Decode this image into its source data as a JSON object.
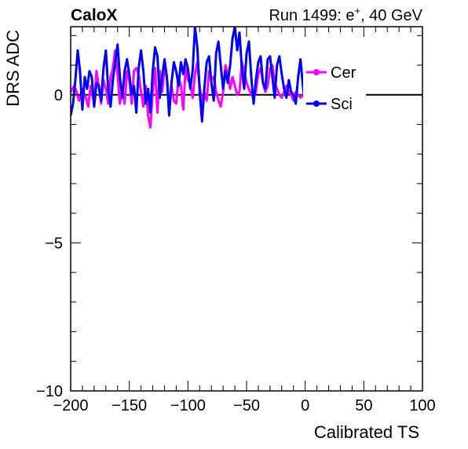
{
  "header": {
    "left_text": "CaloX",
    "right_text": "Run 1499: e",
    "right_sup": "+",
    "right_tail": ", 40 GeV"
  },
  "chart_data": {
    "type": "line",
    "xlabel": "Calibrated TS",
    "ylabel": "DRS ADC",
    "xlim": [
      -200,
      100
    ],
    "ylim": [
      -10,
      2.3
    ],
    "x_ticks": [
      -200,
      -150,
      -100,
      -50,
      0,
      50,
      100
    ],
    "x_tick_labels": [
      "−200",
      "−150",
      "−100",
      "−50",
      "0",
      "50",
      "100"
    ],
    "y_ticks": [
      -10,
      -5,
      0
    ],
    "y_tick_labels": [
      "−10",
      "−5",
      "0"
    ],
    "zero_line": true,
    "legend": {
      "placement": "top-right",
      "entries": [
        {
          "name": "Cer",
          "color": "#ff00ff"
        },
        {
          "name": "Sci",
          "color": "#0000ff"
        }
      ]
    },
    "series": [
      {
        "name": "Cer",
        "color": "#ff00ff",
        "x": [
          -200,
          -197,
          -195,
          -193,
          -190,
          -187,
          -185,
          -183,
          -180,
          -178,
          -176,
          -174,
          -172,
          -170,
          -168,
          -166,
          -164,
          -162,
          -160,
          -158,
          -156,
          -154,
          -152,
          -150,
          -148,
          -146,
          -144,
          -142,
          -140,
          -138,
          -136,
          -134,
          -132,
          -130,
          -128,
          -126,
          -124,
          -122,
          -120,
          -118,
          -116,
          -114,
          -112,
          -110,
          -108,
          -106,
          -104,
          -102,
          -100,
          -98,
          -96,
          -94,
          -92,
          -90,
          -88,
          -86,
          -84,
          -82,
          -80,
          -78,
          -76,
          -74,
          -72,
          -70,
          -68,
          -66,
          -64,
          -62,
          -60,
          -58,
          -56,
          -54,
          -52,
          -50,
          -48,
          -46,
          -44,
          -42,
          -40,
          -38,
          -36,
          -34,
          -32,
          -30,
          -28,
          -26,
          -24,
          -22,
          -20,
          -18,
          -16,
          -14,
          -12,
          -10,
          -8,
          -6,
          -4,
          -2,
          0
        ],
        "y": [
          0.1,
          0.3,
          0.1,
          -0.2,
          0.2,
          -0.1,
          -0.4,
          0.3,
          -0.3,
          0.8,
          0.3,
          -0.3,
          0.5,
          0.2,
          -0.3,
          0.6,
          0.9,
          1.5,
          0.7,
          -0.3,
          0.2,
          -0.3,
          0.8,
          0.5,
          -0.3,
          0.8,
          0.9,
          0.7,
          0.1,
          -0.4,
          0.3,
          -0.7,
          -1.1,
          0.1,
          0.9,
          -0.6,
          0.8,
          0.1,
          0.9,
          0.6,
          -0.3,
          0.3,
          -0.2,
          -0.3,
          0.6,
          0.3,
          -0.5,
          0.9,
          0.5,
          0.4,
          -0.1,
          0.7,
          1.1,
          0.3,
          -0.3,
          0.1,
          -0.2,
          0.8,
          0.5,
          0.6,
          0.1,
          -0.2,
          -0.4,
          0.1,
          1.0,
          0.7,
          0.2,
          0.6,
          0.3,
          0.0,
          0.1,
          1.1,
          0.8,
          0.4,
          0.2,
          0.0,
          -0.1,
          0.1,
          0.7,
          0.9,
          0.4,
          0.1,
          0.3,
          0.9,
          1.0,
          0.4,
          0.2,
          0.0,
          -0.1,
          0.1,
          0.3,
          0.1,
          0.0,
          -0.2,
          0.1,
          0.0,
          -0.1,
          0.0,
          0.0
        ]
      },
      {
        "name": "Sci",
        "color": "#0000ff",
        "x": [
          -200,
          -198,
          -196,
          -194,
          -192,
          -190,
          -188,
          -186,
          -184,
          -182,
          -180,
          -178,
          -176,
          -174,
          -172,
          -170,
          -168,
          -166,
          -164,
          -162,
          -160,
          -158,
          -156,
          -154,
          -152,
          -150,
          -148,
          -146,
          -144,
          -142,
          -140,
          -138,
          -136,
          -134,
          -132,
          -130,
          -128,
          -126,
          -124,
          -122,
          -120,
          -118,
          -116,
          -114,
          -112,
          -110,
          -108,
          -106,
          -104,
          -102,
          -100,
          -98,
          -96,
          -94,
          -92,
          -90,
          -88,
          -86,
          -84,
          -82,
          -80,
          -78,
          -76,
          -74,
          -72,
          -70,
          -68,
          -66,
          -64,
          -62,
          -60,
          -58,
          -56,
          -54,
          -52,
          -50,
          -48,
          -46,
          -44,
          -42,
          -40,
          -38,
          -36,
          -34,
          -32,
          -30,
          -28,
          -26,
          -24,
          -22,
          -20,
          -18,
          -16,
          -14,
          -12,
          -10,
          -8,
          -6,
          -4,
          -2,
          0
        ],
        "y": [
          -0.7,
          -0.3,
          0.5,
          1.5,
          0.8,
          -0.5,
          0.6,
          0.2,
          0.8,
          0.6,
          -0.4,
          0.4,
          0.3,
          -0.2,
          0.9,
          1.5,
          0.2,
          -0.4,
          0.5,
          1.1,
          1.7,
          0.6,
          -0.1,
          0.8,
          1.2,
          0.7,
          0.0,
          0.3,
          -0.6,
          0.9,
          1.5,
          0.8,
          -0.3,
          0.2,
          -0.6,
          0.8,
          1.6,
          1.3,
          -0.1,
          0.6,
          1.2,
          0.6,
          -0.7,
          0.4,
          1.1,
          0.8,
          0.3,
          1.1,
          0.7,
          1.2,
          0.9,
          0.2,
          0.8,
          2.3,
          1.6,
          0.1,
          -0.9,
          0.2,
          1.1,
          1.3,
          0.4,
          -0.2,
          1.4,
          1.8,
          1.0,
          0.2,
          0.8,
          0.4,
          1.0,
          1.9,
          2.3,
          1.5,
          2.1,
          0.9,
          0.2,
          1.4,
          1.8,
          0.6,
          -0.3,
          0.5,
          1.1,
          1.3,
          0.4,
          0.2,
          1.2,
          1.3,
          0.6,
          -0.1,
          1.0,
          1.3,
          0.7,
          0.2,
          -0.1,
          0.5,
          0.1,
          0.0,
          -0.3,
          0.6,
          1.2,
          0.3,
          -0.4
        ]
      }
    ]
  }
}
